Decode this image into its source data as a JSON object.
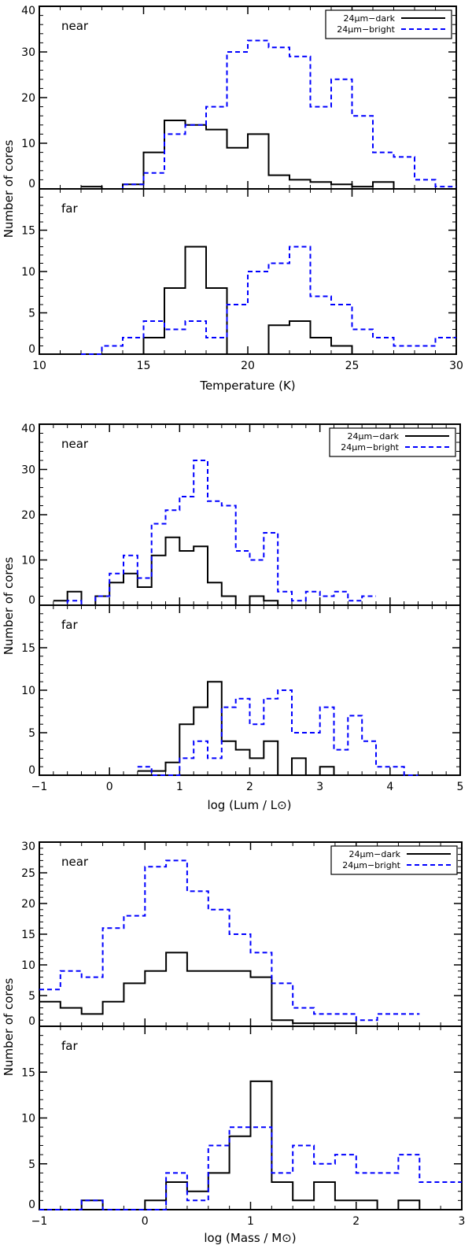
{
  "colors": {
    "dark": "#000000",
    "bright": "#0000ff"
  },
  "chart_data": [
    {
      "type": "histogram",
      "ylabel": "Number of cores",
      "xlabel": "Temperature (K)",
      "xlim": [
        10,
        30
      ],
      "xticks": [
        "10",
        "15",
        "20",
        "25",
        "30"
      ],
      "legend": {
        "position": "top-right",
        "entries": [
          {
            "label": "24μm−dark",
            "style": "solid"
          },
          {
            "label": "24μm−bright",
            "style": "dashed"
          }
        ]
      },
      "panels": [
        {
          "label": "near",
          "ylim": [
            0,
            40
          ],
          "yticks": [
            "0",
            "10",
            "20",
            "30",
            "40"
          ],
          "bin_edges": [
            12,
            13,
            14,
            15,
            16,
            17,
            18,
            19,
            20,
            21,
            22,
            23,
            24,
            25,
            26,
            27,
            28,
            29,
            30
          ],
          "series": [
            {
              "name": "24μm−dark",
              "values": [
                0.5,
                0,
                1,
                8,
                15,
                14,
                13,
                9,
                12,
                3,
                2,
                1.5,
                1,
                0.5,
                1.5,
                0,
                0,
                0
              ]
            },
            {
              "name": "24μm−bright",
              "values": [
                0,
                0,
                1,
                3.5,
                12,
                14,
                18,
                30,
                32.5,
                31,
                29,
                18,
                24,
                16,
                8,
                7,
                2,
                0.5
              ]
            }
          ]
        },
        {
          "label": "far",
          "ylim": [
            0,
            20
          ],
          "yticks": [
            "0",
            "5",
            "10",
            "15",
            ""
          ],
          "bin_edges": [
            12,
            13,
            14,
            15,
            16,
            17,
            18,
            19,
            20,
            21,
            22,
            23,
            24,
            25,
            26,
            27,
            28,
            29,
            30
          ],
          "series": [
            {
              "name": "24μm−dark",
              "values": [
                0,
                0,
                0,
                2,
                8,
                13,
                8,
                0,
                0,
                3.5,
                4,
                2,
                1,
                0,
                0,
                0,
                0,
                0
              ]
            },
            {
              "name": "24μm−bright",
              "values": [
                0,
                1,
                2,
                4,
                3,
                4,
                2,
                6,
                10,
                11,
                13,
                7,
                6,
                3,
                2,
                1,
                1,
                2
              ]
            }
          ]
        }
      ]
    },
    {
      "type": "histogram",
      "ylabel": "Number of cores",
      "xlabel": "log (Lum / L⊙)",
      "xlim": [
        -1,
        5
      ],
      "xticks": [
        "−1",
        "0",
        "1",
        "2",
        "3",
        "4",
        "5"
      ],
      "legend": {
        "position": "top-right",
        "entries": [
          {
            "label": "24μm−dark",
            "style": "solid"
          },
          {
            "label": "24μm−bright",
            "style": "dashed"
          }
        ]
      },
      "panels": [
        {
          "label": "near",
          "ylim": [
            0,
            40
          ],
          "yticks": [
            "0",
            "10",
            "20",
            "30",
            "40"
          ],
          "bin_edges": [
            -0.8,
            -0.6,
            -0.4,
            -0.2,
            0.0,
            0.2,
            0.4,
            0.6,
            0.8,
            1.0,
            1.2,
            1.4,
            1.6,
            1.8,
            2.0,
            2.2,
            2.4,
            2.6,
            2.8,
            3.0,
            3.2,
            3.4,
            3.6,
            3.8
          ],
          "series": [
            {
              "name": "24μm−dark",
              "values": [
                1,
                3,
                0,
                2,
                5,
                7,
                4,
                11,
                15,
                12,
                13,
                5,
                2,
                0,
                2,
                1,
                0,
                0,
                0,
                0,
                0,
                0,
                0
              ]
            },
            {
              "name": "24μm−bright",
              "values": [
                0,
                1,
                0,
                2,
                7,
                11,
                6,
                18,
                21,
                24,
                32,
                23,
                22,
                12,
                10,
                16,
                3,
                1,
                3,
                2,
                3,
                1,
                2
              ]
            }
          ]
        },
        {
          "label": "far",
          "ylim": [
            0,
            20
          ],
          "yticks": [
            "0",
            "5",
            "10",
            "15",
            ""
          ],
          "bin_edges": [
            0.4,
            0.6,
            0.8,
            1.0,
            1.2,
            1.4,
            1.6,
            1.8,
            2.0,
            2.2,
            2.4,
            2.6,
            2.8,
            3.0,
            3.2,
            3.4,
            3.6,
            3.8,
            4.0,
            4.2,
            4.4
          ],
          "series": [
            {
              "name": "24μm−dark",
              "values": [
                0.5,
                0.5,
                1.5,
                6,
                8,
                11,
                4,
                3,
                2,
                4,
                0,
                2,
                0,
                1,
                0,
                0,
                0,
                0,
                0,
                0
              ]
            },
            {
              "name": "24μm−bright",
              "values": [
                1,
                0,
                0,
                2,
                4,
                2,
                8,
                9,
                6,
                9,
                10,
                5,
                5,
                8,
                3,
                7,
                4,
                1,
                1,
                0
              ]
            }
          ]
        }
      ]
    },
    {
      "type": "histogram",
      "ylabel": "Number of cores",
      "xlabel": "log (Mass / M⊙)",
      "xlim": [
        -1,
        3
      ],
      "xticks": [
        "−1",
        "0",
        "1",
        "2",
        "3"
      ],
      "legend": {
        "position": "top-right",
        "entries": [
          {
            "label": "24μm−dark",
            "style": "solid"
          },
          {
            "label": "24μm−bright",
            "style": "dashed"
          }
        ]
      },
      "panels": [
        {
          "label": "near",
          "ylim": [
            0,
            30
          ],
          "yticks": [
            "0",
            "5",
            "10",
            "15",
            "20",
            "25",
            "30"
          ],
          "bin_edges": [
            -1.0,
            -0.8,
            -0.6,
            -0.4,
            -0.2,
            0.0,
            0.2,
            0.4,
            0.6,
            0.8,
            1.0,
            1.2,
            1.4,
            1.6,
            1.8,
            2.0,
            2.2,
            2.4,
            2.6
          ],
          "series": [
            {
              "name": "24μm−dark",
              "values": [
                4,
                3,
                2,
                4,
                7,
                9,
                12,
                9,
                9,
                9,
                8,
                1,
                0.5,
                0.5,
                0.5,
                0,
                0,
                0
              ]
            },
            {
              "name": "24μm−bright",
              "values": [
                6,
                9,
                8,
                16,
                18,
                26,
                27,
                22,
                19,
                15,
                12,
                7,
                3,
                2,
                2,
                1,
                2,
                2
              ]
            }
          ]
        },
        {
          "label": "far",
          "ylim": [
            0,
            20
          ],
          "yticks": [
            "0",
            "5",
            "10",
            "15",
            ""
          ],
          "bin_edges": [
            -1.0,
            -0.8,
            -0.6,
            -0.4,
            -0.2,
            0.0,
            0.2,
            0.4,
            0.6,
            0.8,
            1.0,
            1.2,
            1.4,
            1.6,
            1.8,
            2.0,
            2.2,
            2.4,
            2.6,
            2.8,
            3.0
          ],
          "series": [
            {
              "name": "24μm−dark",
              "values": [
                0,
                0,
                1,
                0,
                0,
                1,
                3,
                2,
                4,
                8,
                14,
                3,
                1,
                3,
                1,
                1,
                0,
                1,
                0,
                0
              ]
            },
            {
              "name": "24μm−bright",
              "values": [
                0,
                0,
                1,
                0,
                0,
                0,
                4,
                1,
                7,
                9,
                9,
                4,
                7,
                5,
                6,
                4,
                4,
                6,
                3,
                3
              ]
            }
          ]
        }
      ]
    }
  ]
}
